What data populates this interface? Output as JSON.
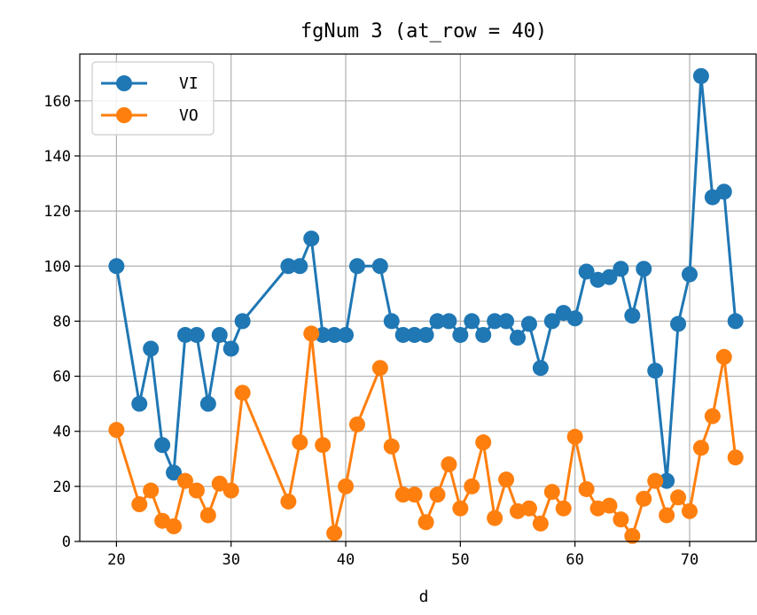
{
  "chart_data": {
    "type": "line",
    "title": "fgNum 3 (at_row = 40)",
    "xlabel": "d",
    "ylabel": "",
    "xlim": [
      16.8,
      75.8
    ],
    "ylim": [
      0,
      177
    ],
    "xticks": [
      20,
      30,
      40,
      50,
      60,
      70
    ],
    "yticks": [
      0,
      20,
      40,
      60,
      80,
      100,
      120,
      140,
      160
    ],
    "grid": true,
    "legend_position": "top-left",
    "series": [
      {
        "name": "VI",
        "color": "#1f77b4",
        "marker": "circle",
        "points": [
          {
            "x": 20,
            "y": 100
          },
          {
            "x": 22,
            "y": 50
          },
          {
            "x": 23,
            "y": 70
          },
          {
            "x": 24,
            "y": 35
          },
          {
            "x": 25,
            "y": 25
          },
          {
            "x": 26,
            "y": 75
          },
          {
            "x": 27,
            "y": 75
          },
          {
            "x": 28,
            "y": 50
          },
          {
            "x": 29,
            "y": 75
          },
          {
            "x": 30,
            "y": 70
          },
          {
            "x": 31,
            "y": 80
          },
          {
            "x": 35,
            "y": 100
          },
          {
            "x": 36,
            "y": 100
          },
          {
            "x": 37,
            "y": 110
          },
          {
            "x": 38,
            "y": 75
          },
          {
            "x": 39,
            "y": 75
          },
          {
            "x": 40,
            "y": 75
          },
          {
            "x": 41,
            "y": 100
          },
          {
            "x": 43,
            "y": 100
          },
          {
            "x": 44,
            "y": 80
          },
          {
            "x": 45,
            "y": 75
          },
          {
            "x": 46,
            "y": 75
          },
          {
            "x": 47,
            "y": 75
          },
          {
            "x": 48,
            "y": 80
          },
          {
            "x": 49,
            "y": 80
          },
          {
            "x": 50,
            "y": 75
          },
          {
            "x": 51,
            "y": 80
          },
          {
            "x": 52,
            "y": 75
          },
          {
            "x": 53,
            "y": 80
          },
          {
            "x": 54,
            "y": 80
          },
          {
            "x": 55,
            "y": 74
          },
          {
            "x": 56,
            "y": 79
          },
          {
            "x": 57,
            "y": 63
          },
          {
            "x": 58,
            "y": 80
          },
          {
            "x": 59,
            "y": 83
          },
          {
            "x": 60,
            "y": 81
          },
          {
            "x": 61,
            "y": 98
          },
          {
            "x": 62,
            "y": 95
          },
          {
            "x": 63,
            "y": 96
          },
          {
            "x": 64,
            "y": 99
          },
          {
            "x": 65,
            "y": 82
          },
          {
            "x": 66,
            "y": 99
          },
          {
            "x": 67,
            "y": 62
          },
          {
            "x": 68,
            "y": 22
          },
          {
            "x": 69,
            "y": 79
          },
          {
            "x": 70,
            "y": 97
          },
          {
            "x": 71,
            "y": 169
          },
          {
            "x": 72,
            "y": 125
          },
          {
            "x": 73,
            "y": 127
          },
          {
            "x": 74,
            "y": 80
          }
        ]
      },
      {
        "name": "VO",
        "color": "#ff7f0e",
        "marker": "circle",
        "points": [
          {
            "x": 20,
            "y": 40.5
          },
          {
            "x": 22,
            "y": 13.5
          },
          {
            "x": 23,
            "y": 18.5
          },
          {
            "x": 24,
            "y": 7.5
          },
          {
            "x": 25,
            "y": 5.5
          },
          {
            "x": 26,
            "y": 22
          },
          {
            "x": 27,
            "y": 18.5
          },
          {
            "x": 28,
            "y": 9.5
          },
          {
            "x": 29,
            "y": 21
          },
          {
            "x": 30,
            "y": 18.5
          },
          {
            "x": 31,
            "y": 54
          },
          {
            "x": 35,
            "y": 14.5
          },
          {
            "x": 36,
            "y": 36
          },
          {
            "x": 37,
            "y": 75.5
          },
          {
            "x": 38,
            "y": 35
          },
          {
            "x": 39,
            "y": 3
          },
          {
            "x": 40,
            "y": 20
          },
          {
            "x": 41,
            "y": 42.5
          },
          {
            "x": 43,
            "y": 63
          },
          {
            "x": 44,
            "y": 34.5
          },
          {
            "x": 45,
            "y": 17
          },
          {
            "x": 46,
            "y": 17
          },
          {
            "x": 47,
            "y": 7
          },
          {
            "x": 48,
            "y": 17
          },
          {
            "x": 49,
            "y": 28
          },
          {
            "x": 50,
            "y": 12
          },
          {
            "x": 51,
            "y": 20
          },
          {
            "x": 52,
            "y": 36
          },
          {
            "x": 53,
            "y": 8.5
          },
          {
            "x": 54,
            "y": 22.5
          },
          {
            "x": 55,
            "y": 11
          },
          {
            "x": 56,
            "y": 12
          },
          {
            "x": 57,
            "y": 6.5
          },
          {
            "x": 58,
            "y": 18
          },
          {
            "x": 59,
            "y": 12
          },
          {
            "x": 60,
            "y": 38
          },
          {
            "x": 61,
            "y": 19
          },
          {
            "x": 62,
            "y": 12
          },
          {
            "x": 63,
            "y": 13
          },
          {
            "x": 64,
            "y": 8
          },
          {
            "x": 65,
            "y": 2
          },
          {
            "x": 66,
            "y": 15.5
          },
          {
            "x": 67,
            "y": 22
          },
          {
            "x": 68,
            "y": 9.5
          },
          {
            "x": 69,
            "y": 16
          },
          {
            "x": 70,
            "y": 11
          },
          {
            "x": 71,
            "y": 34
          },
          {
            "x": 72,
            "y": 45.5
          },
          {
            "x": 73,
            "y": 67
          },
          {
            "x": 74,
            "y": 30.5
          }
        ]
      }
    ]
  }
}
